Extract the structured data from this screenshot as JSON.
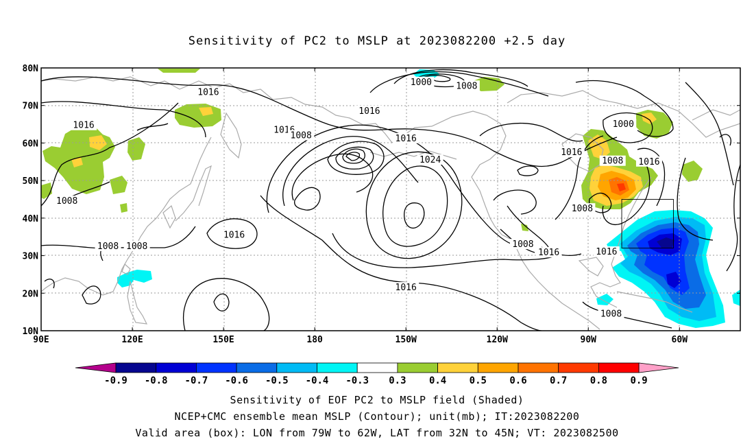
{
  "title": "Sensitivity of PC2 to MSLP at 2023082200 +2.5 day",
  "map": {
    "lat_labels": [
      "80N",
      "70N",
      "60N",
      "50N",
      "40N",
      "30N",
      "20N",
      "10N"
    ],
    "lon_labels": [
      "90E",
      "120E",
      "150E",
      "180",
      "150W",
      "120W",
      "90W",
      "60W"
    ],
    "isobar_labels": [
      {
        "text": "1016",
        "lon": 145,
        "lat": 73.5
      },
      {
        "text": "1016",
        "lon": 104,
        "lat": 64.7
      },
      {
        "text": "1016",
        "lon": 170,
        "lat": 63.5
      },
      {
        "text": "1008",
        "lon": 175.5,
        "lat": 62
      },
      {
        "text": "1016",
        "lon": -150,
        "lat": 61.2
      },
      {
        "text": "1016",
        "lon": -162,
        "lat": 68.5
      },
      {
        "text": "1000",
        "lon": -145,
        "lat": 76.2
      },
      {
        "text": "1008",
        "lon": -130,
        "lat": 75.2
      },
      {
        "text": "1024",
        "lon": -142,
        "lat": 55.5
      },
      {
        "text": "1016",
        "lon": -95.5,
        "lat": 57.5
      },
      {
        "text": "1000",
        "lon": -78.5,
        "lat": 65
      },
      {
        "text": "1008",
        "lon": -82,
        "lat": 55.2
      },
      {
        "text": "1016",
        "lon": -70,
        "lat": 55
      },
      {
        "text": "1008",
        "lon": -92,
        "lat": 42.5
      },
      {
        "text": "1008",
        "lon": -111.5,
        "lat": 33
      },
      {
        "text": "1016",
        "lon": -103,
        "lat": 30.8
      },
      {
        "text": "1016",
        "lon": -84,
        "lat": 31
      },
      {
        "text": "1016",
        "lon": -150,
        "lat": 21.5
      },
      {
        "text": "1008",
        "lon": -82.5,
        "lat": 14.5
      },
      {
        "text": "1008",
        "lon": 98.5,
        "lat": 44.5
      },
      {
        "text": "1008",
        "lon": 112,
        "lat": 32.5
      },
      {
        "text": "1008",
        "lon": 121.5,
        "lat": 32.5
      },
      {
        "text": "1016",
        "lon": 153.5,
        "lat": 35.5
      }
    ],
    "valid_box": {
      "lon_min": -79,
      "lon_max": -62,
      "lat_min": 32,
      "lat_max": 45
    }
  },
  "colorbar": {
    "labels": [
      "-0.9",
      "-0.8",
      "-0.7",
      "-0.6",
      "-0.5",
      "-0.4",
      "-0.3",
      "0.3",
      "0.4",
      "0.5",
      "0.6",
      "0.7",
      "0.8",
      "0.9"
    ],
    "colors": [
      "#06068f",
      "#0000d4",
      "#0033ff",
      "#0a6ce6",
      "#00bbf5",
      "#00f5f5",
      "#ffffff",
      "#9acd32",
      "#ffd23a",
      "#ffa500",
      "#ff7300",
      "#ff3a00",
      "#ff0000"
    ],
    "left_arrow_color": "#b4008c",
    "right_arrow_color": "#ffa0c8"
  },
  "caption": {
    "line1": "Sensitivity of EOF PC2 to MSLP field (Shaded)",
    "line2": "NCEP+CMC ensemble mean MSLP (Contour); unit(mb); IT:2023082200",
    "line3": "Valid area (box): LON from 79W to 62W, LAT from 32N to 45N; VT: 2023082500"
  }
}
